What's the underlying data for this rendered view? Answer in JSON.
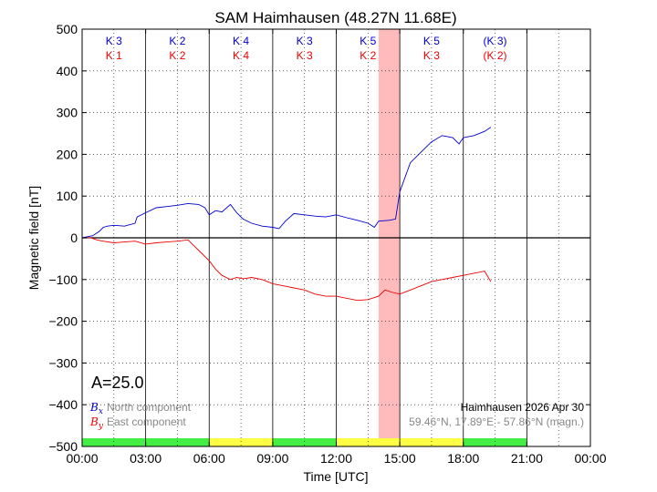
{
  "chart_data": {
    "type": "line",
    "title": "SAM Haimhausen (48.27N 11.68E)",
    "xlabel": "Time [UTC]",
    "ylabel": "Magnetic field [nT]",
    "xlim": [
      0,
      24
    ],
    "ylim": [
      -500,
      500
    ],
    "xtick_labels": [
      "00:00",
      "03:00",
      "06:00",
      "09:00",
      "12:00",
      "15:00",
      "18:00",
      "21:00",
      "00:00"
    ],
    "ytick_values": [
      -500,
      -400,
      -300,
      -200,
      -100,
      0,
      100,
      200,
      300,
      400,
      500
    ],
    "ytick_labels": [
      "−500",
      "−400",
      "−300",
      "−200",
      "−100",
      "0",
      "100",
      "200",
      "300",
      "400",
      "500"
    ],
    "grid": true,
    "k_index_rows": [
      {
        "color": "#0000cc",
        "labels": [
          "K 3",
          "K 2",
          "K 4",
          "K 3",
          "K 5",
          "K 5",
          "(K 3)"
        ]
      },
      {
        "color": "#ee0000",
        "labels": [
          "K 1",
          "K 2",
          "K 4",
          "K 3",
          "K 2",
          "K 3",
          "(K 2)"
        ]
      }
    ],
    "highlight_span": {
      "x_start": 14.0,
      "x_end": 15.0,
      "color": "#ffbbbb"
    },
    "status_bar": [
      {
        "x_start": 0,
        "x_end": 6,
        "color": "#44ee44"
      },
      {
        "x_start": 6,
        "x_end": 9,
        "color": "#ffff44"
      },
      {
        "x_start": 9,
        "x_end": 12,
        "color": "#44ee44"
      },
      {
        "x_start": 12,
        "x_end": 18,
        "color": "#ffff44"
      },
      {
        "x_start": 18,
        "x_end": 21,
        "color": "#44ee44"
      }
    ],
    "annotation": "A=25.0",
    "legend": [
      {
        "symbol": "B",
        "sub": "x",
        "text": "North component",
        "color": "#0000cc"
      },
      {
        "symbol": "B",
        "sub": "y",
        "text": "East component",
        "color": "#ee0000"
      }
    ],
    "info_lines": [
      {
        "text": "Haimhausen 2026 Apr 30",
        "color": "#000000"
      },
      {
        "text": "59.46°N, 17.89°E - 57.86°N (magn.)",
        "color": "#888888"
      }
    ],
    "series": [
      {
        "name": "North component",
        "color": "#0000cc",
        "x": [
          0,
          0.5,
          0.8,
          1.0,
          1.2,
          1.5,
          2.0,
          2.5,
          2.6,
          3.0,
          3.5,
          4.0,
          4.5,
          5.0,
          5.5,
          5.8,
          6.0,
          6.3,
          6.6,
          7.0,
          7.3,
          7.6,
          8.0,
          8.5,
          9.0,
          9.3,
          9.6,
          10.0,
          10.5,
          11.0,
          11.5,
          12.0,
          12.5,
          13.0,
          13.5,
          13.8,
          14.0,
          14.5,
          14.8,
          15.0,
          15.5,
          16.0,
          16.5,
          17.0,
          17.5,
          17.8,
          18.0,
          18.5,
          19.0,
          19.3
        ],
        "y": [
          0,
          5,
          15,
          25,
          28,
          30,
          28,
          35,
          50,
          60,
          72,
          75,
          78,
          82,
          80,
          72,
          55,
          65,
          62,
          80,
          60,
          45,
          35,
          28,
          25,
          22,
          40,
          58,
          55,
          52,
          50,
          55,
          48,
          42,
          35,
          25,
          40,
          42,
          45,
          110,
          180,
          205,
          230,
          245,
          240,
          225,
          240,
          245,
          255,
          265
        ]
      },
      {
        "name": "East component",
        "color": "#ee0000",
        "x": [
          0,
          0.4,
          0.7,
          1.0,
          1.5,
          2.0,
          2.5,
          3.0,
          3.5,
          4.0,
          4.5,
          5.0,
          5.3,
          5.6,
          6.0,
          6.3,
          6.6,
          7.0,
          7.3,
          7.6,
          8.0,
          8.5,
          9.0,
          9.5,
          10.0,
          10.5,
          11.0,
          11.5,
          12.0,
          12.5,
          13.0,
          13.5,
          14.0,
          14.3,
          14.6,
          15.0,
          15.5,
          16.0,
          16.5,
          17.0,
          17.5,
          18.0,
          18.5,
          19.0,
          19.3
        ],
        "y": [
          0,
          0,
          -5,
          -8,
          -12,
          -10,
          -8,
          -15,
          -12,
          -10,
          -8,
          -5,
          -20,
          -35,
          -55,
          -75,
          -90,
          -100,
          -95,
          -98,
          -95,
          -100,
          -110,
          -115,
          -120,
          -125,
          -135,
          -140,
          -140,
          -145,
          -150,
          -148,
          -140,
          -125,
          -130,
          -135,
          -125,
          -115,
          -105,
          -100,
          -95,
          -90,
          -85,
          -80,
          -105
        ]
      }
    ]
  }
}
